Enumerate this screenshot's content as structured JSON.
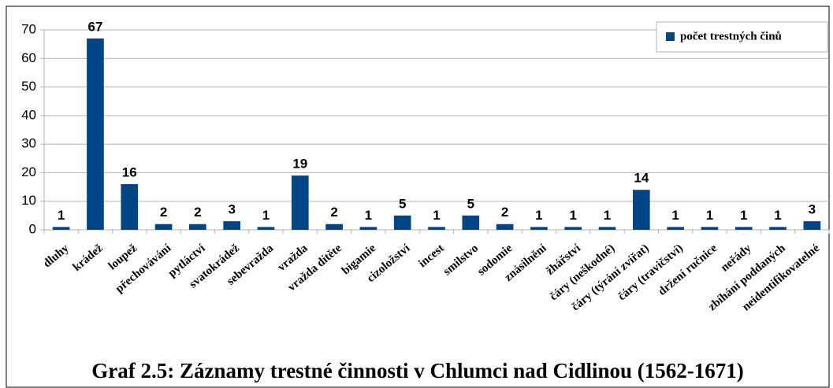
{
  "chart_data": {
    "type": "bar",
    "title": "Graf 2.5: Záznamy trestné činnosti v Chlumci nad Cidlinou (1562-1671)",
    "categories": [
      "dluhy",
      "krádež",
      "loupež",
      "přechovávání",
      "pytláctví",
      "svatokrádež",
      "sebevražda",
      "vražda",
      "vražda dítěte",
      "bigamie",
      "cizoložství",
      "incest",
      "smilstvo",
      "sodomie",
      "znásilnění",
      "žhářství",
      "čáry (neškodné)",
      "čáry (týrání zvířat)",
      "čáry (travičství)",
      "držení ručnice",
      "neřády",
      "zbíhání poddaných",
      "neidentifikovatelné"
    ],
    "series": [
      {
        "name": "počet trestných činů",
        "color": "#004586",
        "values": [
          1,
          67,
          16,
          2,
          2,
          3,
          1,
          19,
          2,
          1,
          5,
          1,
          5,
          2,
          1,
          1,
          1,
          14,
          1,
          1,
          1,
          1,
          3
        ]
      }
    ],
    "ylim": [
      0,
      70
    ],
    "yticks": [
      0,
      10,
      20,
      30,
      40,
      50,
      60,
      70
    ],
    "grid": true,
    "legend": "top-right"
  }
}
